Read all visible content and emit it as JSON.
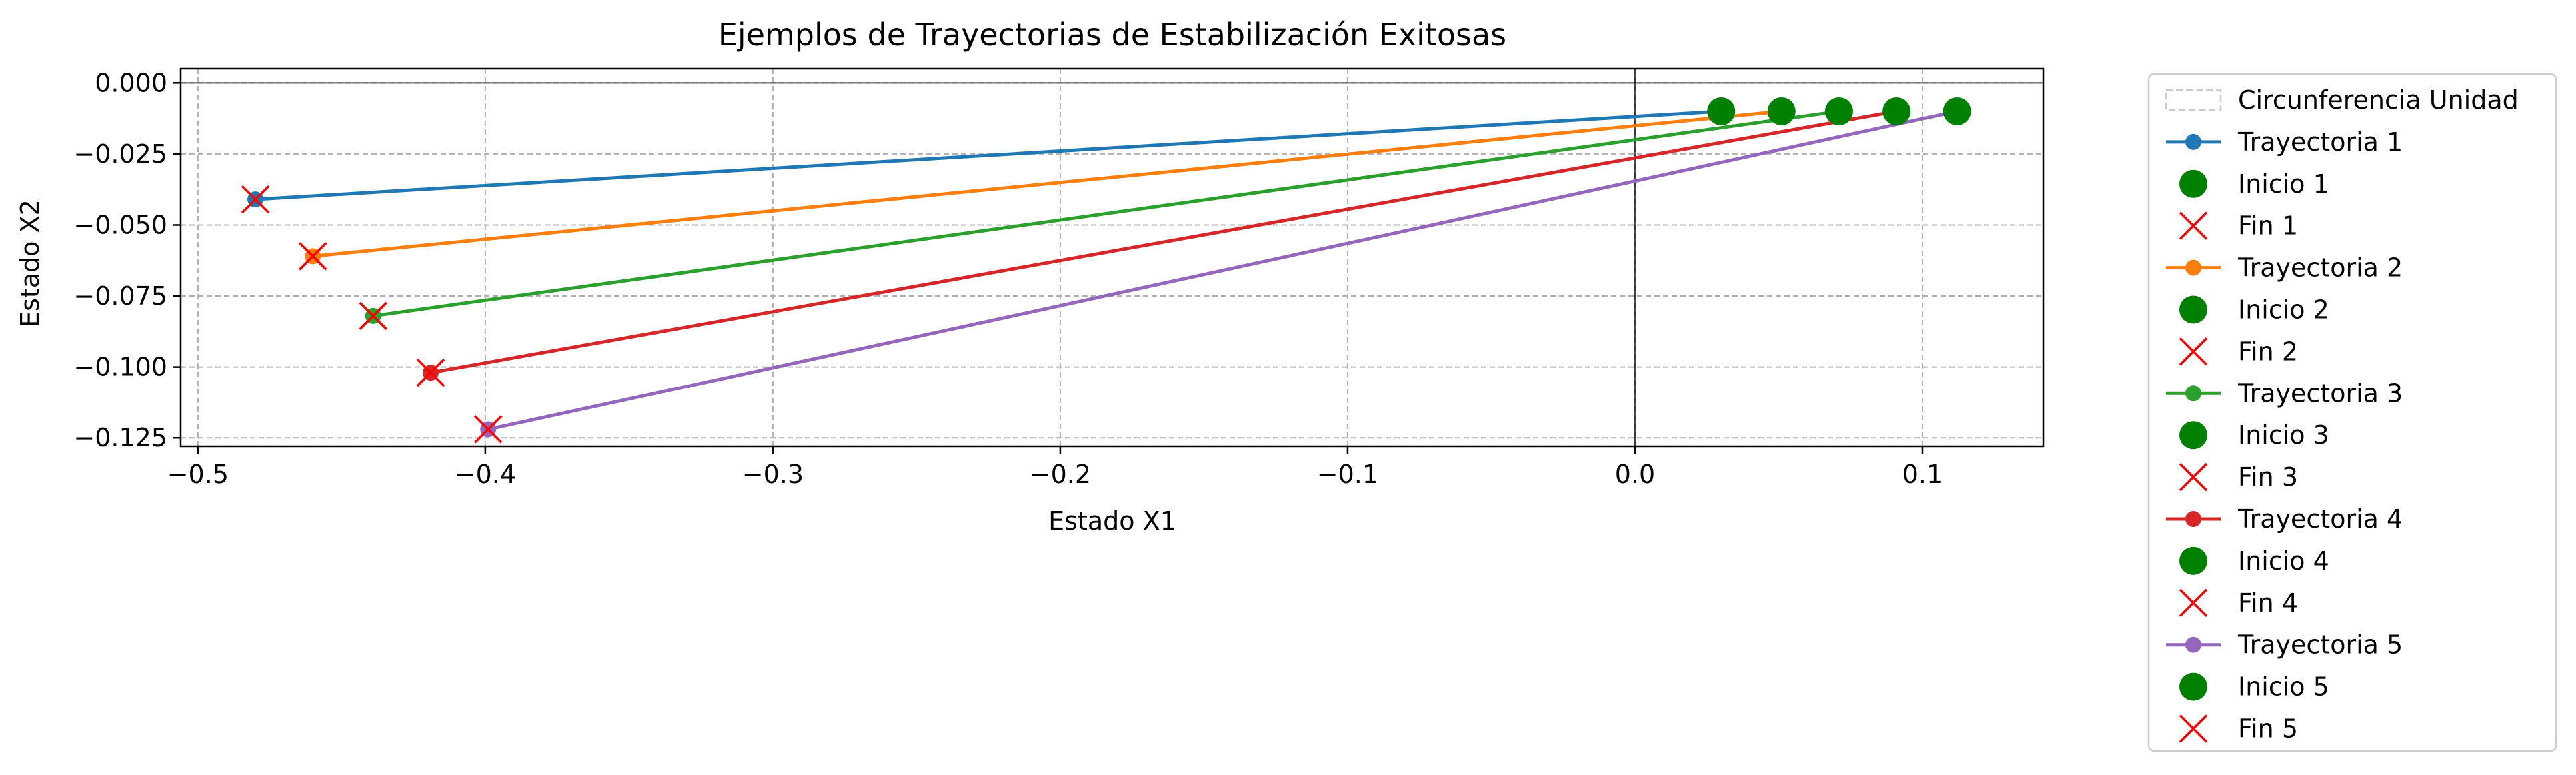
{
  "chart_data": {
    "type": "line",
    "title": "Ejemplos de Trayectorias de Estabilización Exitosas",
    "xlabel": "Estado X1",
    "ylabel": "Estado X2",
    "xlim": [
      -0.506,
      0.142
    ],
    "ylim": [
      -0.128,
      0.005
    ],
    "xticks": [
      -0.5,
      -0.4,
      -0.3,
      -0.2,
      -0.1,
      0.0,
      0.1
    ],
    "xtick_labels": [
      "−0.5",
      "−0.4",
      "−0.3",
      "−0.2",
      "−0.1",
      "0.0",
      "0.1"
    ],
    "yticks": [
      0.0,
      -0.025,
      -0.05,
      -0.075,
      -0.1,
      -0.125
    ],
    "ytick_labels": [
      "0.000",
      "−0.025",
      "−0.050",
      "−0.075",
      "−0.100",
      "−0.125"
    ],
    "grid": true,
    "reference_lines": {
      "x": 0.0,
      "y": 0.0
    },
    "legend_position": "outside-right",
    "unit_circle_label": "Circunferencia Unidad",
    "start_color": "#008000",
    "end_color": "#ff0000",
    "series": [
      {
        "name": "Trayectoria 1",
        "start_label": "Inicio 1",
        "end_label": "Fin 1",
        "color": "#1f77b4",
        "x": [
          0.03,
          -0.48
        ],
        "y": [
          -0.01,
          -0.041
        ]
      },
      {
        "name": "Trayectoria 2",
        "start_label": "Inicio 2",
        "end_label": "Fin 2",
        "color": "#ff7f0e",
        "x": [
          0.051,
          -0.46
        ],
        "y": [
          -0.01,
          -0.061
        ]
      },
      {
        "name": "Trayectoria 3",
        "start_label": "Inicio 3",
        "end_label": "Fin 3",
        "color": "#2ca02c",
        "x": [
          0.071,
          -0.439
        ],
        "y": [
          -0.01,
          -0.082
        ]
      },
      {
        "name": "Trayectoria 4",
        "start_label": "Inicio 4",
        "end_label": "Fin 4",
        "color": "#d62728",
        "x": [
          0.091,
          -0.419
        ],
        "y": [
          -0.01,
          -0.102
        ]
      },
      {
        "name": "Trayectoria 5",
        "start_label": "Inicio 5",
        "end_label": "Fin 5",
        "color": "#9467bd",
        "x": [
          0.112,
          -0.399
        ],
        "y": [
          -0.01,
          -0.122
        ]
      }
    ]
  }
}
